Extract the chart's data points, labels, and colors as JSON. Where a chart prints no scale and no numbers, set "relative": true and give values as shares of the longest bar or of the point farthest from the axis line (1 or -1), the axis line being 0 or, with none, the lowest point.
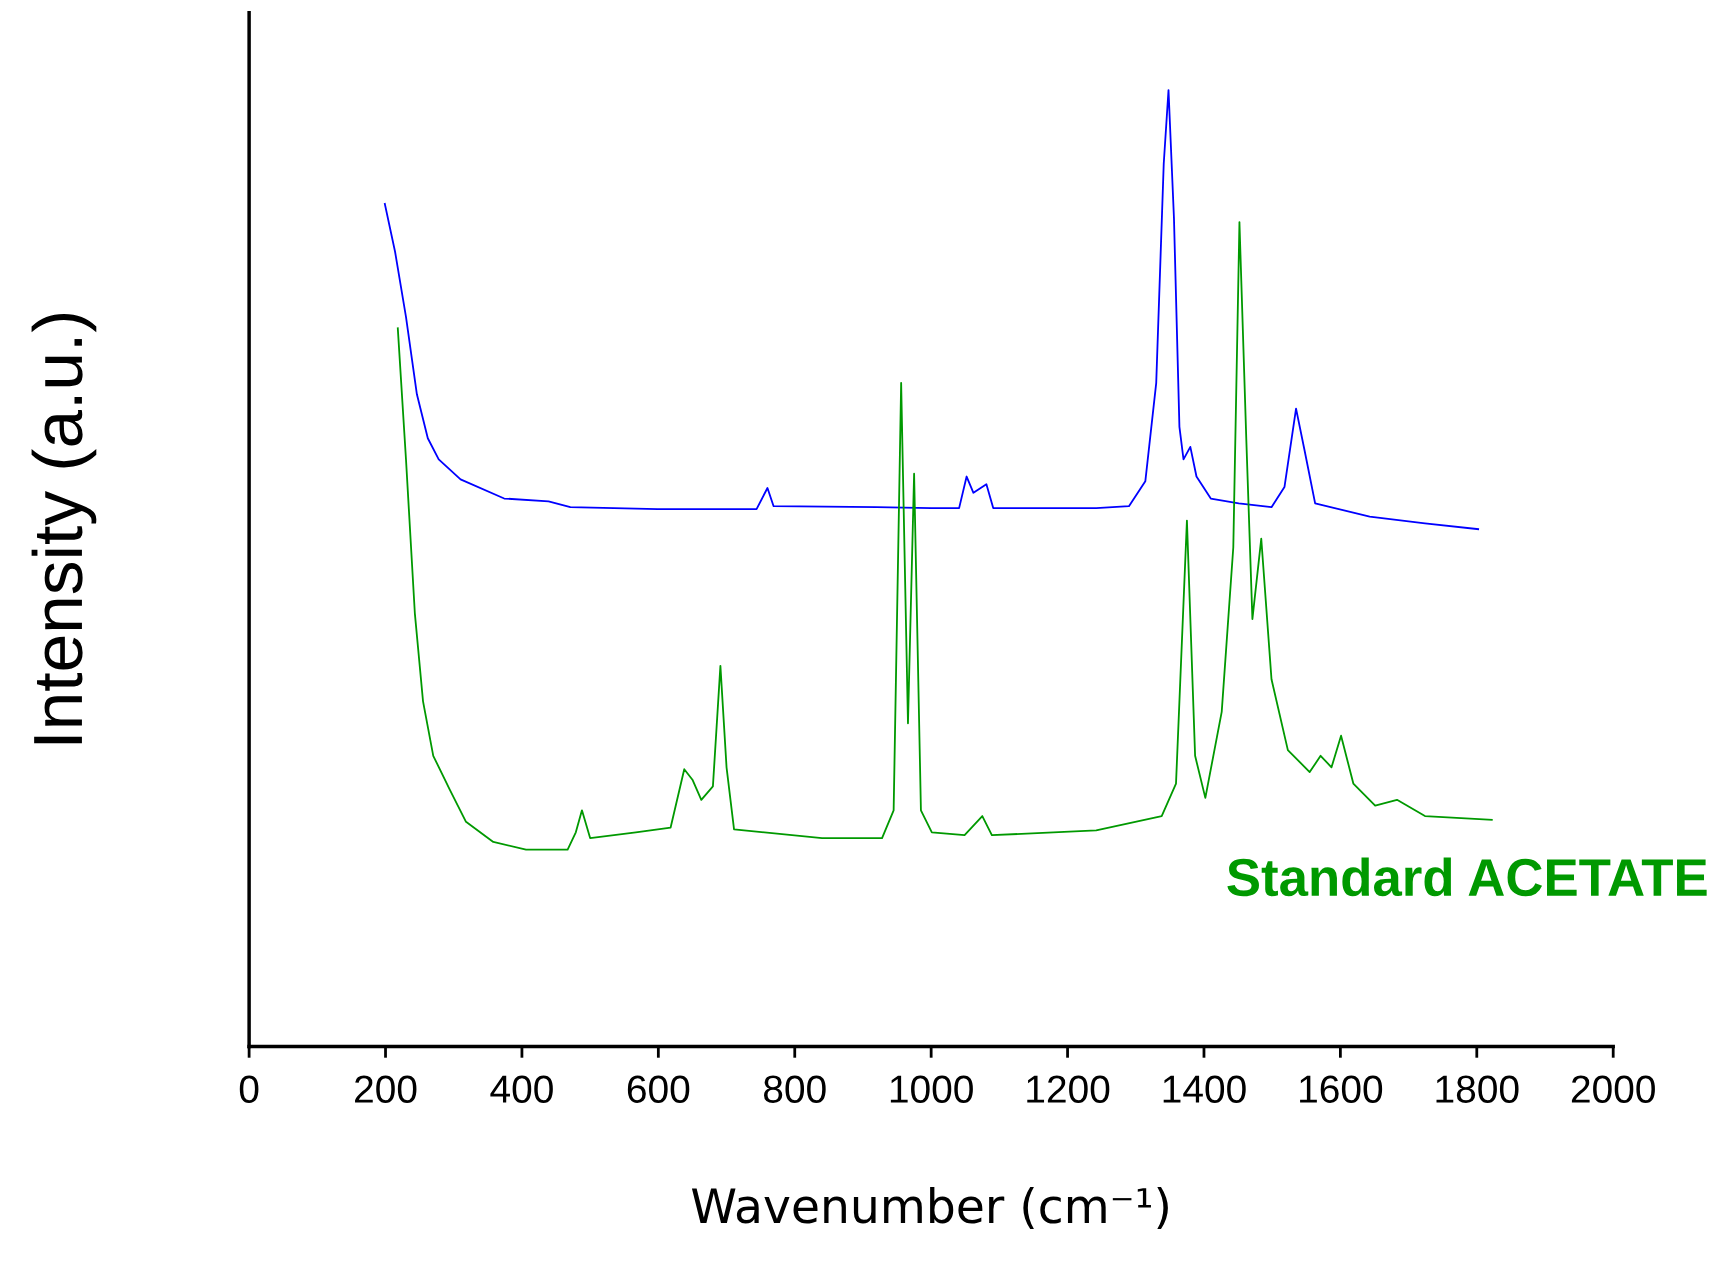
{
  "chart_data": {
    "type": "line",
    "relative": true,
    "xlabel": "Wavenumber (cm⁻¹)",
    "ylabel": "Intensity (a.u.)",
    "xlim": [
      0,
      2000
    ],
    "xticks": [
      0,
      200,
      400,
      600,
      800,
      1000,
      1200,
      1400,
      1600,
      1800,
      2000
    ],
    "tick_labels": "x",
    "grid": false,
    "legend": false,
    "marker": "none",
    "line_style": "solid",
    "series": [
      {
        "color": "#0000ff",
        "x": [
          199,
          214,
          230,
          246,
          262,
          278,
          310,
          374,
          439,
          471,
          599,
          744,
          760,
          769,
          920,
          1000,
          1041,
          1052,
          1062,
          1081,
          1091,
          1242,
          1290,
          1314,
          1330,
          1341,
          1348,
          1356,
          1364,
          1370,
          1380,
          1389,
          1410,
          1451,
          1499,
          1518,
          1535,
          1547,
          1563,
          1643,
          1724,
          1802
        ],
        "values": [
          0.881,
          0.831,
          0.763,
          0.682,
          0.636,
          0.614,
          0.593,
          0.573,
          0.57,
          0.564,
          0.562,
          0.562,
          0.584,
          0.565,
          0.564,
          0.563,
          0.563,
          0.596,
          0.579,
          0.588,
          0.563,
          0.563,
          0.565,
          0.591,
          0.694,
          0.923,
          1.0,
          0.866,
          0.648,
          0.614,
          0.627,
          0.596,
          0.573,
          0.568,
          0.564,
          0.585,
          0.667,
          0.625,
          0.568,
          0.554,
          0.547,
          0.541
        ]
      },
      {
        "name": "Standard ACETATE",
        "color": "#009900",
        "x": [
          218,
          230,
          243,
          255,
          270,
          294,
          318,
          358,
          406,
          467,
          479,
          488,
          500,
          567,
          618,
          638,
          650,
          663,
          680,
          691,
          700,
          711,
          840,
          928,
          945,
          956,
          966,
          975,
          985,
          1001,
          1049,
          1075,
          1089,
          1242,
          1338,
          1359,
          1375,
          1387,
          1402,
          1426,
          1443,
          1452,
          1462,
          1471,
          1484,
          1499,
          1523,
          1555,
          1571,
          1587,
          1601,
          1619,
          1651,
          1683,
          1724,
          1822
        ],
        "values": [
          0.751,
          0.614,
          0.453,
          0.361,
          0.304,
          0.269,
          0.235,
          0.214,
          0.206,
          0.206,
          0.224,
          0.247,
          0.218,
          0.224,
          0.229,
          0.29,
          0.279,
          0.258,
          0.272,
          0.398,
          0.292,
          0.227,
          0.218,
          0.218,
          0.247,
          0.694,
          0.338,
          0.599,
          0.247,
          0.224,
          0.221,
          0.241,
          0.221,
          0.226,
          0.241,
          0.275,
          0.55,
          0.304,
          0.26,
          0.35,
          0.522,
          0.862,
          0.636,
          0.447,
          0.531,
          0.384,
          0.31,
          0.287,
          0.304,
          0.292,
          0.325,
          0.275,
          0.252,
          0.258,
          0.241,
          0.237
        ]
      }
    ]
  }
}
